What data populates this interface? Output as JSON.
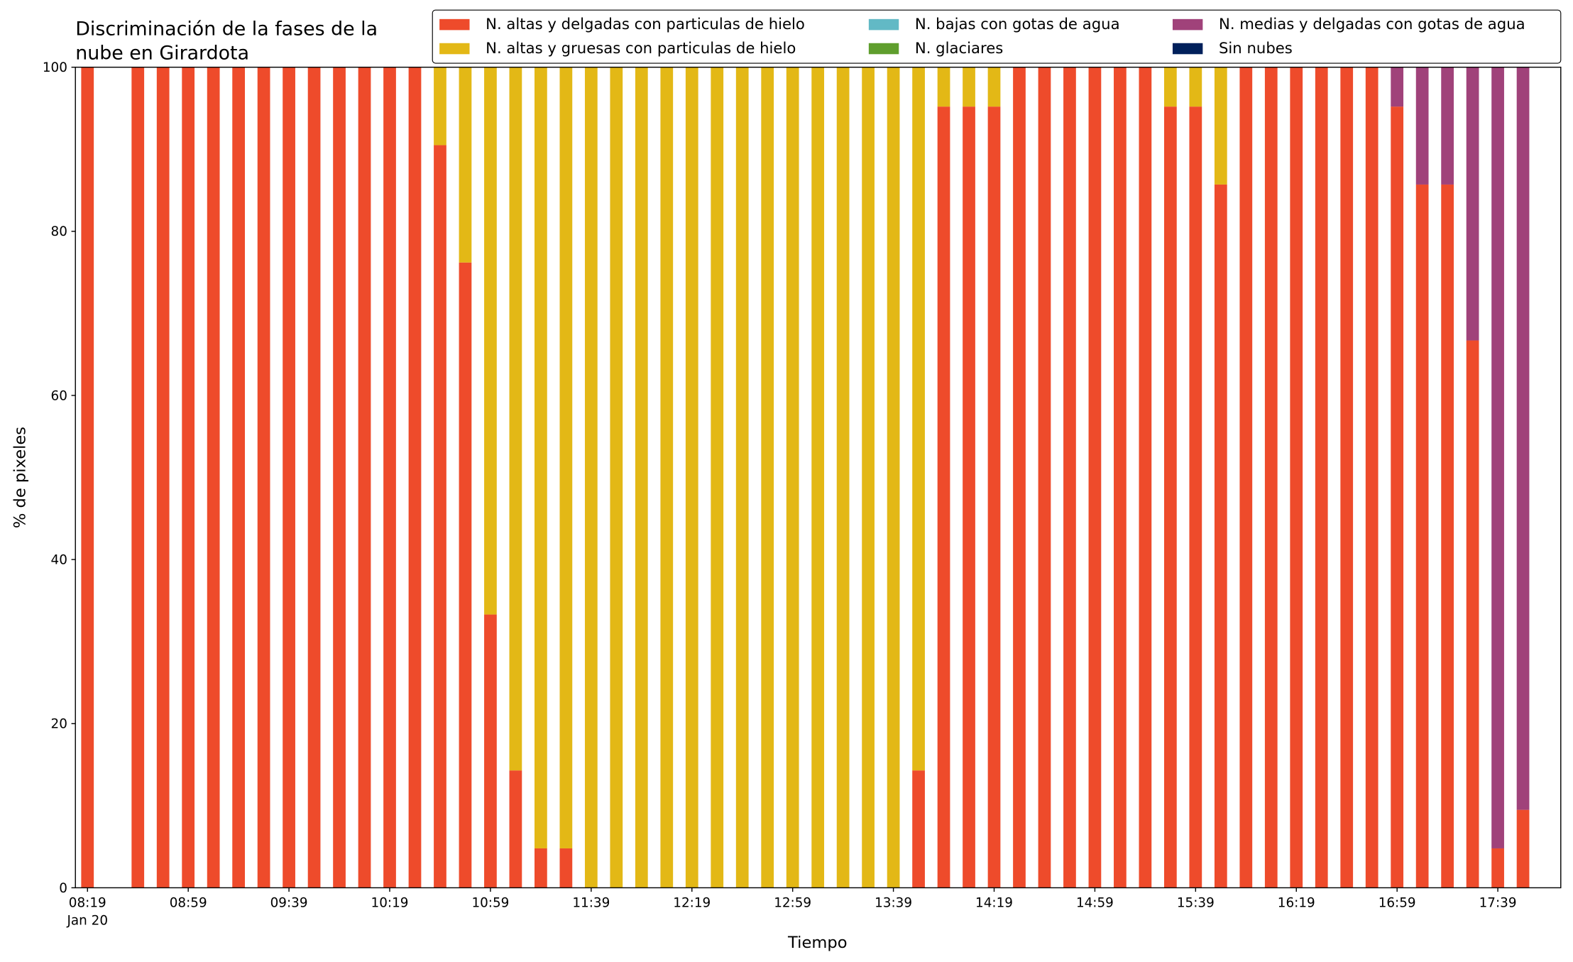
{
  "chart_data": {
    "type": "stacked_bar",
    "title": [
      "Discriminación de la fases de la",
      "nube en Girardota"
    ],
    "x_label": "Tiempo",
    "y_label": "% de pixeles",
    "date_label": "Jan 20",
    "categories": [
      "08:19",
      null,
      null,
      null,
      "08:59",
      null,
      null,
      null,
      "09:39",
      null,
      null,
      null,
      "10:19",
      null,
      null,
      null,
      "10:59",
      null,
      null,
      null,
      "11:39",
      null,
      null,
      null,
      "12:19",
      null,
      null,
      null,
      "12:59",
      null,
      null,
      null,
      "13:39",
      null,
      null,
      null,
      "14:19",
      null,
      null,
      null,
      "14:59",
      null,
      null,
      null,
      "15:39",
      null,
      null,
      null,
      "16:19",
      null,
      null,
      null,
      "16:59",
      null,
      null,
      null,
      "17:39",
      null
    ],
    "series": [
      {
        "name": "N. altas y delgadas con particulas de hielo",
        "color": "#ee4b2b",
        "values": [
          100,
          null,
          100,
          100,
          100,
          100,
          100,
          100,
          100,
          100,
          100,
          100,
          100,
          100,
          90.5,
          76.2,
          33.3,
          14.3,
          4.8,
          4.8,
          0,
          0,
          0,
          0,
          0,
          0,
          0,
          0,
          0,
          0,
          0,
          0,
          0,
          14.3,
          95.2,
          95.2,
          95.2,
          100,
          100,
          100,
          100,
          100,
          100,
          95.2,
          95.2,
          85.7,
          100,
          100,
          100,
          100,
          100,
          100,
          95.2,
          85.7,
          85.7,
          66.7,
          4.8,
          9.5
        ]
      },
      {
        "name": "N. altas y gruesas con particulas de hielo",
        "color": "#e3b816",
        "values": [
          0,
          null,
          0,
          0,
          0,
          0,
          0,
          0,
          0,
          0,
          0,
          0,
          0,
          0,
          9.5,
          23.8,
          66.7,
          85.7,
          95.2,
          95.2,
          100,
          100,
          100,
          100,
          100,
          100,
          100,
          100,
          100,
          100,
          100,
          100,
          100,
          85.7,
          4.8,
          4.8,
          4.8,
          0,
          0,
          0,
          0,
          0,
          0,
          4.8,
          4.8,
          14.3,
          0,
          0,
          0,
          0,
          0,
          0,
          0,
          0,
          0,
          0,
          0,
          0
        ]
      },
      {
        "name": "N. bajas con gotas de agua",
        "color": "#62b9c5",
        "values": [
          0,
          null,
          0,
          0,
          0,
          0,
          0,
          0,
          0,
          0,
          0,
          0,
          0,
          0,
          0,
          0,
          0,
          0,
          0,
          0,
          0,
          0,
          0,
          0,
          0,
          0,
          0,
          0,
          0,
          0,
          0,
          0,
          0,
          0,
          0,
          0,
          0,
          0,
          0,
          0,
          0,
          0,
          0,
          0,
          0,
          0,
          0,
          0,
          0,
          0,
          0,
          0,
          0,
          0,
          0,
          0,
          0,
          0
        ]
      },
      {
        "name": "N. glaciares",
        "color": "#5f9e2d",
        "values": [
          0,
          null,
          0,
          0,
          0,
          0,
          0,
          0,
          0,
          0,
          0,
          0,
          0,
          0,
          0,
          0,
          0,
          0,
          0,
          0,
          0,
          0,
          0,
          0,
          0,
          0,
          0,
          0,
          0,
          0,
          0,
          0,
          0,
          0,
          0,
          0,
          0,
          0,
          0,
          0,
          0,
          0,
          0,
          0,
          0,
          0,
          0,
          0,
          0,
          0,
          0,
          0,
          0,
          0,
          0,
          0,
          0,
          0
        ]
      },
      {
        "name": "N. medias y delgadas con gotas de agua",
        "color": "#a0427a",
        "values": [
          0,
          null,
          0,
          0,
          0,
          0,
          0,
          0,
          0,
          0,
          0,
          0,
          0,
          0,
          0,
          0,
          0,
          0,
          0,
          0,
          0,
          0,
          0,
          0,
          0,
          0,
          0,
          0,
          0,
          0,
          0,
          0,
          0,
          0,
          0,
          0,
          0,
          0,
          0,
          0,
          0,
          0,
          0,
          0,
          0,
          0,
          0,
          0,
          0,
          0,
          0,
          0,
          4.8,
          14.3,
          14.3,
          33.3,
          95.2,
          90.5
        ]
      },
      {
        "name": "Sin nubes",
        "color": "#00205b",
        "values": [
          0,
          null,
          0,
          0,
          0,
          0,
          0,
          0,
          0,
          0,
          0,
          0,
          0,
          0,
          0,
          0,
          0,
          0,
          0,
          0,
          0,
          0,
          0,
          0,
          0,
          0,
          0,
          0,
          0,
          0,
          0,
          0,
          0,
          0,
          0,
          0,
          0,
          0,
          0,
          0,
          0,
          0,
          0,
          0,
          0,
          0,
          0,
          0,
          0,
          0,
          0,
          0,
          0,
          0,
          0,
          0,
          0,
          0
        ]
      }
    ],
    "ylim": [
      0,
      100
    ],
    "yticks": [
      0,
      20,
      40,
      60,
      80,
      100
    ],
    "legend": "upper right"
  }
}
